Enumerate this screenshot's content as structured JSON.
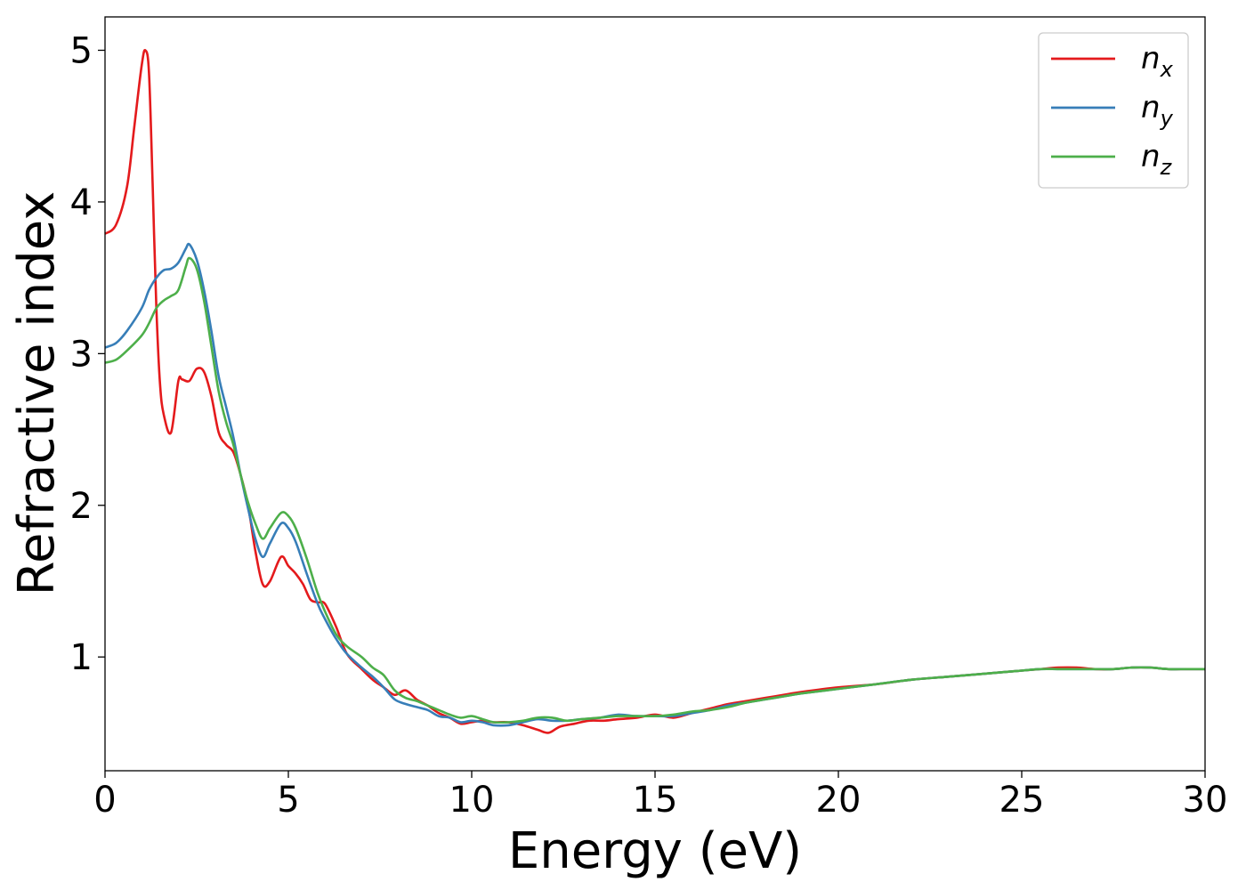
{
  "chart_data": {
    "type": "line",
    "xlabel": "Energy (eV)",
    "ylabel": "Refractive index",
    "xlim": [
      0,
      30
    ],
    "ylim": [
      0.25,
      5.22
    ],
    "xticks": [
      0,
      5,
      10,
      15,
      20,
      25,
      30
    ],
    "xtick_labels": [
      "0",
      "5",
      "10",
      "15",
      "20",
      "25",
      "30"
    ],
    "yticks": [
      1,
      2,
      3,
      4,
      5
    ],
    "ytick_labels": [
      "1",
      "2",
      "3",
      "4",
      "5"
    ],
    "grid": false,
    "legend_position": "top-right",
    "series": [
      {
        "name": "n",
        "subscript": "x",
        "color": "#e41a1c",
        "x": [
          0,
          0.3,
          0.6,
          0.8,
          1.0,
          1.1,
          1.2,
          1.3,
          1.4,
          1.5,
          1.6,
          1.8,
          2.0,
          2.1,
          2.3,
          2.5,
          2.7,
          2.9,
          3.1,
          3.3,
          3.5,
          3.7,
          3.9,
          4.1,
          4.3,
          4.5,
          4.8,
          5.0,
          5.2,
          5.4,
          5.6,
          5.8,
          6.0,
          6.3,
          6.6,
          7.0,
          7.3,
          7.6,
          7.9,
          8.2,
          8.5,
          8.8,
          9.1,
          9.4,
          9.7,
          10.0,
          10.3,
          10.6,
          11.0,
          11.4,
          11.8,
          12.1,
          12.4,
          12.8,
          13.2,
          13.6,
          14.0,
          14.5,
          15.0,
          15.5,
          16.0,
          16.5,
          17.0,
          17.5,
          18.0,
          18.5,
          19.0,
          20.0,
          21.0,
          22.0,
          23.0,
          24.0,
          25.0,
          25.5,
          26.0,
          26.5,
          27.0,
          27.5,
          28.0,
          28.5,
          29.0,
          29.5,
          30.0
        ],
        "values": [
          3.79,
          3.85,
          4.1,
          4.5,
          4.9,
          5.0,
          4.85,
          4.1,
          3.3,
          2.8,
          2.6,
          2.48,
          2.82,
          2.83,
          2.82,
          2.9,
          2.88,
          2.72,
          2.48,
          2.4,
          2.35,
          2.2,
          2.0,
          1.7,
          1.48,
          1.5,
          1.66,
          1.6,
          1.55,
          1.48,
          1.38,
          1.36,
          1.35,
          1.2,
          1.02,
          0.92,
          0.85,
          0.8,
          0.75,
          0.78,
          0.72,
          0.68,
          0.63,
          0.6,
          0.56,
          0.57,
          0.58,
          0.57,
          0.57,
          0.55,
          0.52,
          0.5,
          0.54,
          0.56,
          0.58,
          0.58,
          0.59,
          0.6,
          0.62,
          0.6,
          0.63,
          0.66,
          0.69,
          0.71,
          0.73,
          0.75,
          0.77,
          0.8,
          0.82,
          0.85,
          0.87,
          0.89,
          0.91,
          0.92,
          0.93,
          0.93,
          0.92,
          0.92,
          0.93,
          0.93,
          0.92,
          0.92,
          0.92
        ]
      },
      {
        "name": "n",
        "subscript": "y",
        "color": "#377eb8",
        "x": [
          0,
          0.3,
          0.6,
          1.0,
          1.2,
          1.4,
          1.6,
          1.8,
          2.0,
          2.2,
          2.3,
          2.5,
          2.7,
          2.9,
          3.1,
          3.3,
          3.5,
          3.7,
          3.9,
          4.1,
          4.3,
          4.5,
          4.8,
          5.0,
          5.2,
          5.5,
          5.8,
          6.0,
          6.3,
          6.6,
          7.0,
          7.3,
          7.6,
          7.9,
          8.2,
          8.5,
          8.8,
          9.1,
          9.4,
          9.7,
          10.0,
          10.3,
          10.6,
          11.0,
          11.4,
          11.8,
          12.2,
          12.6,
          13.0,
          13.5,
          14.0,
          14.5,
          15.0,
          15.5,
          16.0,
          16.5,
          17.0,
          17.5,
          18.0,
          18.5,
          19.0,
          20.0,
          21.0,
          22.0,
          23.0,
          24.0,
          25.0,
          25.5,
          26.0,
          26.5,
          27.0,
          27.5,
          28.0,
          28.5,
          29.0,
          29.5,
          30.0
        ],
        "values": [
          3.04,
          3.07,
          3.15,
          3.3,
          3.42,
          3.5,
          3.55,
          3.56,
          3.6,
          3.69,
          3.72,
          3.62,
          3.42,
          3.15,
          2.85,
          2.65,
          2.45,
          2.2,
          1.98,
          1.78,
          1.66,
          1.75,
          1.88,
          1.85,
          1.76,
          1.55,
          1.35,
          1.25,
          1.12,
          1.02,
          0.93,
          0.87,
          0.8,
          0.72,
          0.69,
          0.67,
          0.65,
          0.61,
          0.6,
          0.57,
          0.58,
          0.57,
          0.55,
          0.55,
          0.57,
          0.59,
          0.58,
          0.58,
          0.59,
          0.6,
          0.62,
          0.61,
          0.61,
          0.61,
          0.63,
          0.65,
          0.68,
          0.7,
          0.72,
          0.74,
          0.76,
          0.79,
          0.82,
          0.85,
          0.87,
          0.89,
          0.91,
          0.92,
          0.92,
          0.92,
          0.92,
          0.92,
          0.93,
          0.93,
          0.92,
          0.92,
          0.92
        ]
      },
      {
        "name": "n",
        "subscript": "z",
        "color": "#4daf4a",
        "x": [
          0,
          0.3,
          0.6,
          1.0,
          1.2,
          1.4,
          1.6,
          1.8,
          2.0,
          2.2,
          2.3,
          2.5,
          2.7,
          2.9,
          3.1,
          3.3,
          3.5,
          3.7,
          3.9,
          4.1,
          4.3,
          4.5,
          4.8,
          5.0,
          5.2,
          5.5,
          5.8,
          6.0,
          6.3,
          6.6,
          7.0,
          7.3,
          7.6,
          7.9,
          8.2,
          8.5,
          8.8,
          9.1,
          9.4,
          9.7,
          10.0,
          10.3,
          10.6,
          11.0,
          11.4,
          11.8,
          12.2,
          12.6,
          13.0,
          13.5,
          14.0,
          14.5,
          15.0,
          15.5,
          16.0,
          16.5,
          17.0,
          17.5,
          18.0,
          18.5,
          19.0,
          20.0,
          21.0,
          22.0,
          23.0,
          24.0,
          25.0,
          25.5,
          26.0,
          26.5,
          27.0,
          27.5,
          28.0,
          28.5,
          29.0,
          29.5,
          30.0
        ],
        "values": [
          2.94,
          2.96,
          3.02,
          3.12,
          3.2,
          3.3,
          3.35,
          3.38,
          3.42,
          3.57,
          3.63,
          3.56,
          3.35,
          3.05,
          2.75,
          2.55,
          2.4,
          2.2,
          2.02,
          1.88,
          1.78,
          1.85,
          1.95,
          1.93,
          1.85,
          1.65,
          1.42,
          1.3,
          1.15,
          1.07,
          1.0,
          0.93,
          0.88,
          0.78,
          0.73,
          0.71,
          0.68,
          0.65,
          0.62,
          0.6,
          0.61,
          0.59,
          0.57,
          0.57,
          0.58,
          0.6,
          0.6,
          0.58,
          0.59,
          0.6,
          0.61,
          0.61,
          0.61,
          0.62,
          0.64,
          0.65,
          0.67,
          0.7,
          0.72,
          0.74,
          0.76,
          0.79,
          0.82,
          0.85,
          0.87,
          0.89,
          0.91,
          0.92,
          0.92,
          0.92,
          0.92,
          0.92,
          0.93,
          0.93,
          0.92,
          0.92,
          0.92
        ]
      }
    ]
  }
}
